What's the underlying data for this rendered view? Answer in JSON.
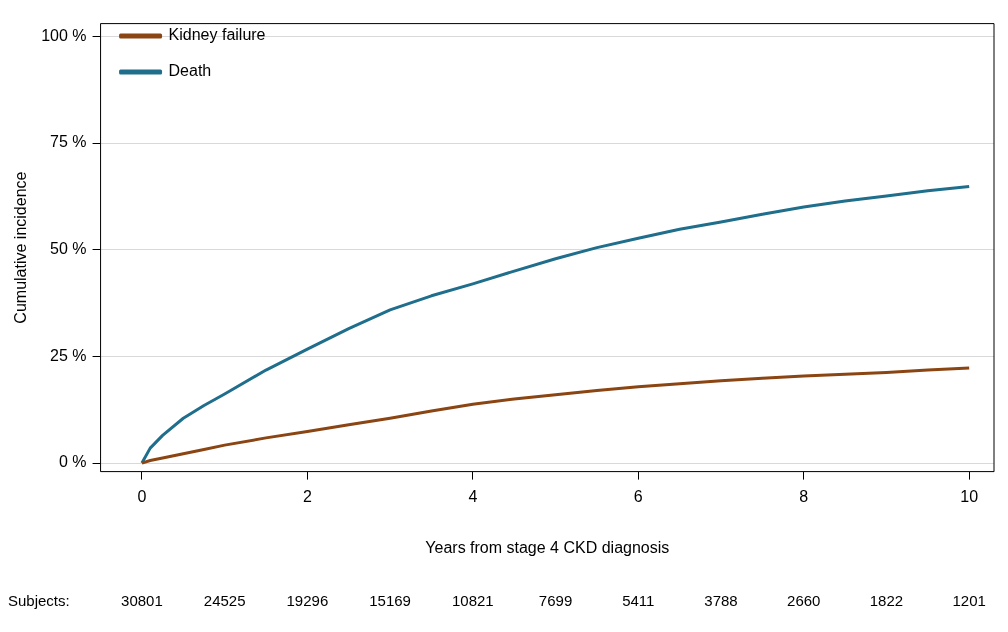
{
  "chart_data": {
    "type": "line",
    "xlabel": "Years from stage 4 CKD diagnosis",
    "ylabel": "Cumulative incidence",
    "xlim": [
      -0.5,
      10.3
    ],
    "xticks": [
      0,
      2,
      4,
      6,
      8,
      10
    ],
    "ylim": [
      -2,
      103
    ],
    "yticks": [
      {
        "value": 0,
        "label": "0 %"
      },
      {
        "value": 25,
        "label": "25 %"
      },
      {
        "value": 50,
        "label": "50 %"
      },
      {
        "value": 75,
        "label": "75 %"
      },
      {
        "value": 100,
        "label": "100 %"
      }
    ],
    "grid": "y",
    "legend": "top left",
    "line_style": "solid",
    "series": [
      {
        "name": "Kidney failure",
        "color": "#8b4513",
        "x": [
          0,
          0.1,
          0.25,
          0.5,
          0.75,
          1,
          1.5,
          2,
          2.5,
          3,
          3.5,
          4,
          4.5,
          5,
          5.5,
          6,
          6.5,
          7,
          7.5,
          8,
          8.5,
          9,
          9.5,
          10
        ],
        "values": [
          0,
          0.6,
          1.2,
          2.2,
          3.2,
          4.2,
          5.9,
          7.4,
          9,
          10.5,
          12.2,
          13.8,
          15,
          16,
          17,
          17.9,
          18.6,
          19.3,
          19.9,
          20.4,
          20.8,
          21.2,
          21.8,
          22.3
        ]
      },
      {
        "name": "Death",
        "color": "#1f6e8c",
        "x": [
          0,
          0.1,
          0.25,
          0.5,
          0.75,
          1,
          1.5,
          2,
          2.5,
          3,
          3.5,
          4,
          4.5,
          5,
          5.5,
          6,
          6.5,
          7,
          7.5,
          8,
          8.5,
          9,
          9.5,
          10
        ],
        "values": [
          0,
          3.5,
          6.5,
          10.5,
          13.5,
          16.2,
          21.8,
          26.7,
          31.5,
          35.9,
          39.2,
          42,
          45,
          47.9,
          50.5,
          52.7,
          54.8,
          56.5,
          58.3,
          60,
          61.4,
          62.6,
          63.8,
          64.8
        ]
      }
    ],
    "annotations": [
      "Subjects:",
      "30801",
      "24525",
      "19296",
      "15169",
      "10821",
      "7699",
      "5411",
      "3788",
      "2660",
      "1822",
      "1201"
    ]
  }
}
